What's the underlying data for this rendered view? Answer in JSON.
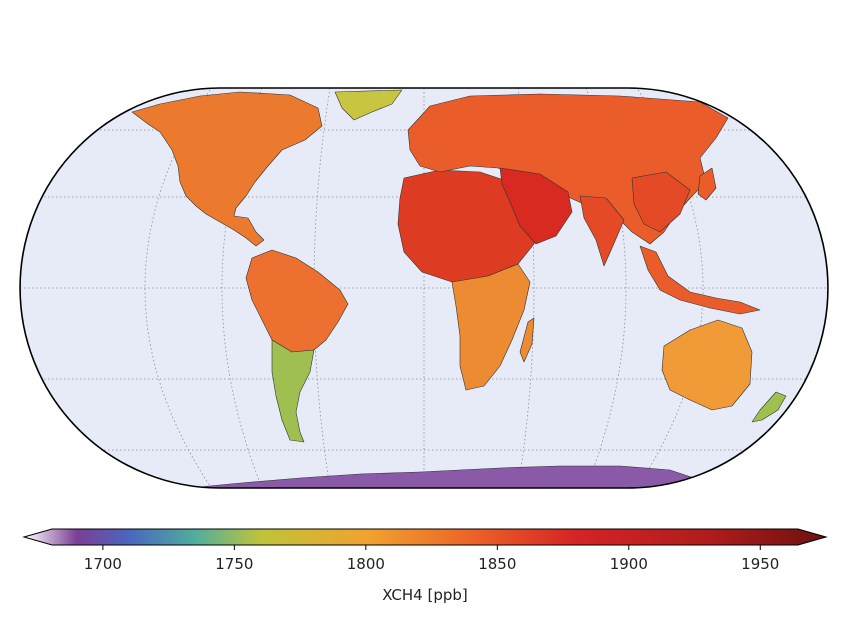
{
  "colorbar": {
    "label": "XCH4 [ppb]",
    "range": [
      1670,
      1975
    ],
    "ticks": [
      1700,
      1750,
      1800,
      1850,
      1900,
      1950
    ],
    "tick_labels": [
      "1700",
      "1750",
      "1800",
      "1850",
      "1900",
      "1950"
    ],
    "extend": "both",
    "stops": [
      {
        "value": 1670,
        "color": "#ffffff"
      },
      {
        "value": 1690,
        "color": "#7b3f94"
      },
      {
        "value": 1710,
        "color": "#4a66bd"
      },
      {
        "value": 1735,
        "color": "#4fae9e"
      },
      {
        "value": 1760,
        "color": "#bfc33a"
      },
      {
        "value": 1800,
        "color": "#f0a330"
      },
      {
        "value": 1840,
        "color": "#ec6428"
      },
      {
        "value": 1880,
        "color": "#d42424"
      },
      {
        "value": 1930,
        "color": "#b01c1c"
      },
      {
        "value": 1975,
        "color": "#6c1210"
      }
    ]
  },
  "map": {
    "projection": "Eckert IV",
    "ocean_color": "#e6ebf7",
    "gridlines": "dotted",
    "land_colors": {
      "north_america": "#ec7a2e",
      "greenland": "#c8c640",
      "south_america_north": "#ee7030",
      "south_america_south": "#9fbf50",
      "africa_north": "#de3c22",
      "africa_south": "#ed8b32",
      "eurasia": "#ea5c2a",
      "middle_east": "#d82a20",
      "india_china": "#e44a26",
      "australia": "#f09a38",
      "antarctica": "#8a5aa8"
    }
  }
}
